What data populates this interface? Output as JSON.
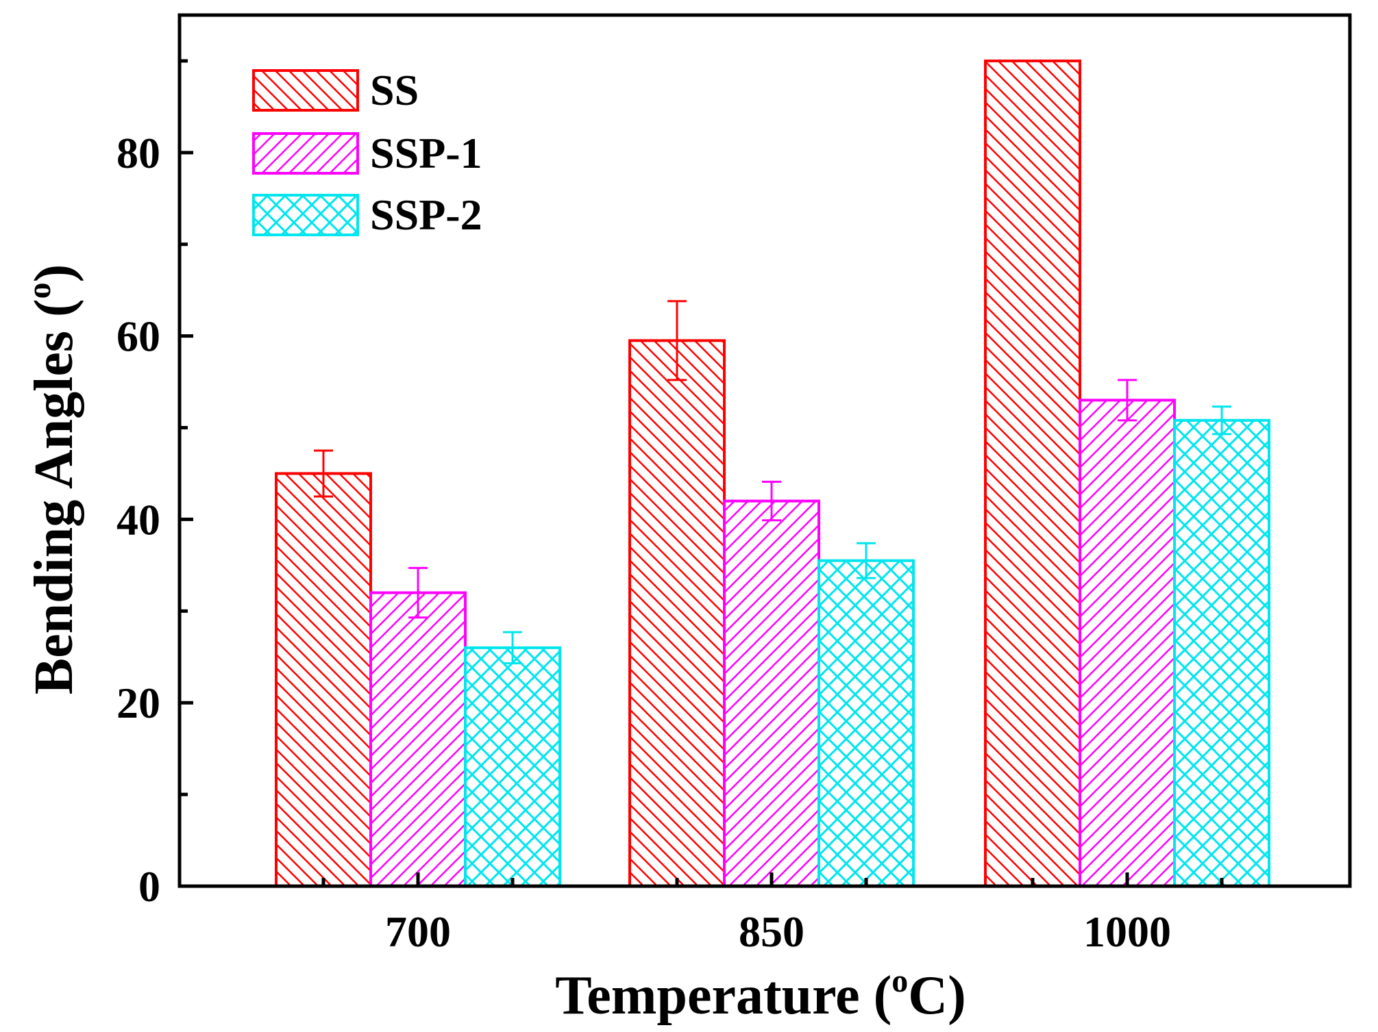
{
  "chart_data": {
    "type": "bar",
    "title": "",
    "xlabel": "Temperature (",
    "xlabel_unit_sup": "o",
    "xlabel_unit_tail": "C)",
    "ylabel": "Bending Angles (",
    "ylabel_unit_sup": "o",
    "ylabel_unit_tail": ")",
    "categories": [
      "700",
      "850",
      "1000"
    ],
    "ylim": [
      0,
      95
    ],
    "yticks": [
      0,
      20,
      40,
      60,
      80
    ],
    "ytick_labels": [
      "0",
      "20",
      "40",
      "60",
      "80"
    ],
    "grid": false,
    "legend_position": "top-left",
    "series": [
      {
        "name": "SS",
        "color": "#ff0000",
        "pattern": "diagonal-hatch-up",
        "values": [
          45,
          59.5,
          90
        ],
        "errors": [
          2.5,
          4.3,
          null
        ]
      },
      {
        "name": "SSP-1",
        "color": "#ff00ff",
        "pattern": "diagonal-hatch-down",
        "values": [
          32,
          42,
          53
        ],
        "errors": [
          2.7,
          2.1,
          2.2
        ]
      },
      {
        "name": "SSP-2",
        "color": "#00e5ee",
        "pattern": "crosshatch",
        "values": [
          26,
          35.5,
          50.8
        ],
        "errors": [
          1.7,
          1.9,
          1.5
        ]
      }
    ]
  }
}
